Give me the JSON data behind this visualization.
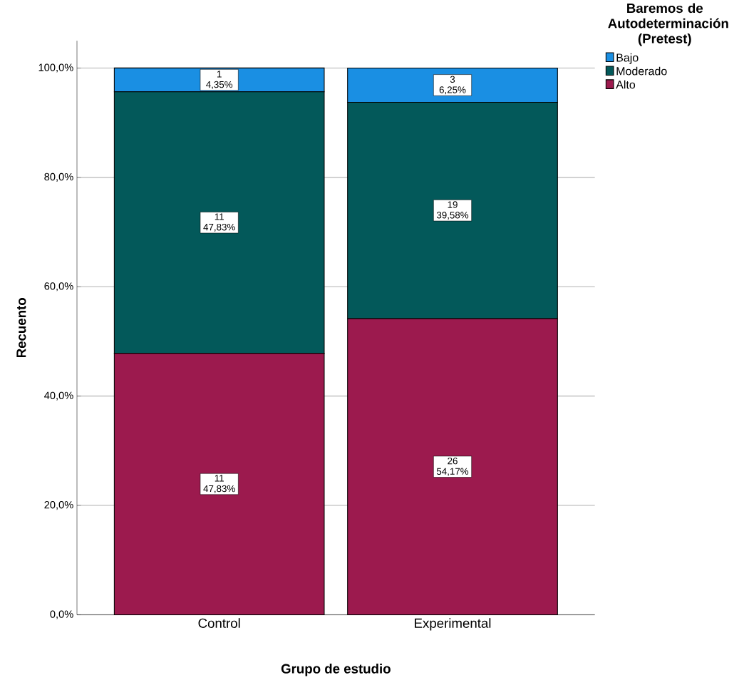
{
  "chart_data": {
    "type": "bar",
    "stacked": true,
    "xlabel": "Grupo de estudio",
    "ylabel": "Recuento",
    "legend_title": "Baremos de Autodeterminación (Pretest)",
    "categories": [
      "Control",
      "Experimental"
    ],
    "series": [
      {
        "name": "Alto",
        "color": "#9c1a4e",
        "values": [
          47.83,
          54.17
        ],
        "value_labels": [
          "11 47,83%",
          "26 54,17%"
        ]
      },
      {
        "name": "Moderado",
        "color": "#03595a",
        "values": [
          47.83,
          39.58
        ],
        "value_labels": [
          "11 47,83%",
          "19 39,58%"
        ]
      },
      {
        "name": "Bajo",
        "color": "#1a8fe3",
        "values": [
          4.35,
          6.25
        ],
        "value_labels": [
          "1 4,35%",
          "3 6,25%"
        ]
      }
    ],
    "ylim": [
      0,
      105
    ],
    "yticks": [
      {
        "value": 0,
        "label": "0,0%"
      },
      {
        "value": 20,
        "label": "20,0%"
      },
      {
        "value": 40,
        "label": "40,0%"
      },
      {
        "value": 60,
        "label": "60,0%"
      },
      {
        "value": 80,
        "label": "80,0%"
      },
      {
        "value": 100,
        "label": "100,0%"
      }
    ],
    "grid": "y",
    "legend": "top right"
  }
}
